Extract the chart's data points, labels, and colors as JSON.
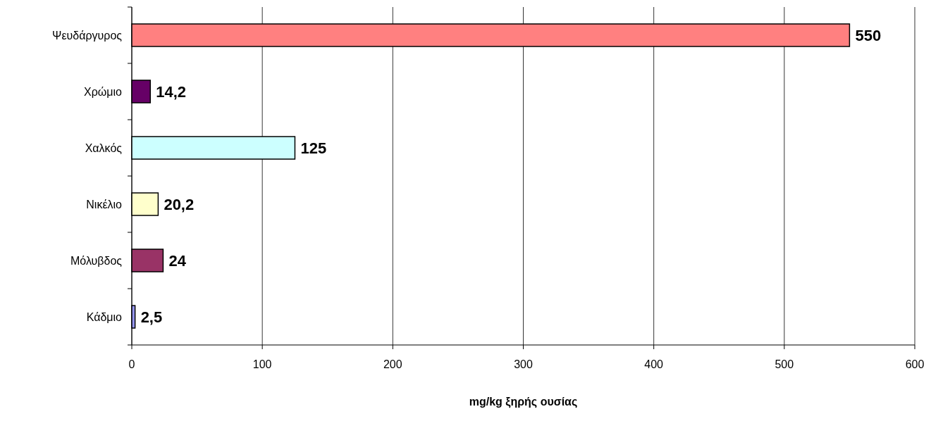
{
  "chart_data": {
    "type": "bar",
    "orientation": "horizontal",
    "xlabel": "mg/kg ξηρής ουσίας",
    "categories": [
      "Ψευδάργυρος",
      "Χρώμιο",
      "Χαλκός",
      "Νικέλιο",
      "Μόλυβδος",
      "Κάδμιο"
    ],
    "values": [
      550,
      14.2,
      125,
      20.2,
      24,
      2.5
    ],
    "value_labels": [
      "550",
      "14,2",
      "125",
      "20,2",
      "24",
      "2,5"
    ],
    "colors": [
      "#ff8080",
      "#660066",
      "#ccffff",
      "#ffffcc",
      "#993366",
      "#9999ff"
    ],
    "xlim": [
      0,
      600
    ],
    "xticks": [
      0,
      100,
      200,
      300,
      400,
      500,
      600
    ],
    "grid": "x"
  }
}
